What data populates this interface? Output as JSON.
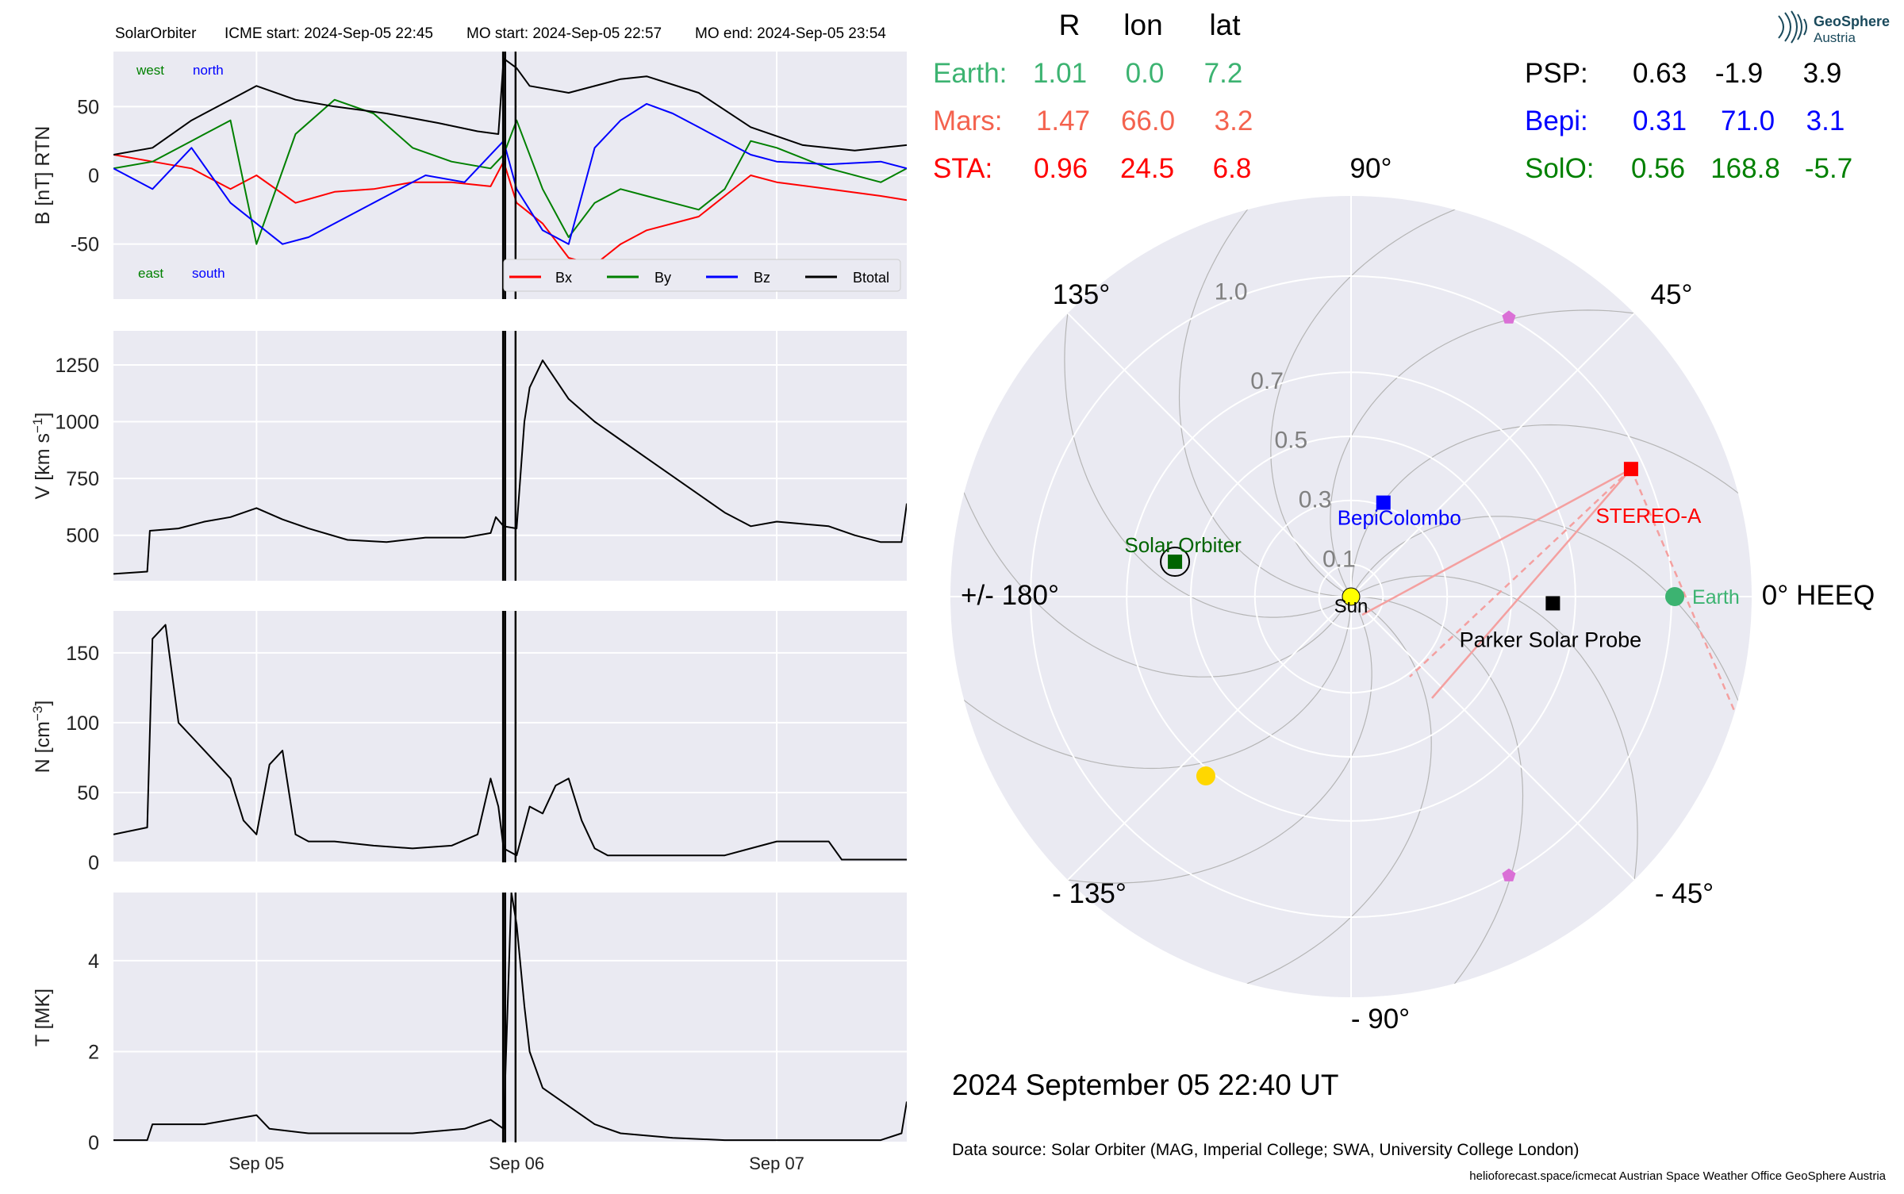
{
  "header": {
    "spacecraft": "SolarOrbiter",
    "icme_start": "ICME start: 2024-Sep-05 22:45",
    "mo_start": "MO start: 2024-Sep-05 22:57",
    "mo_end": "MO end: 2024-Sep-05 23:54"
  },
  "logo": {
    "line1": "GeoSphere",
    "line2": "Austria"
  },
  "colors": {
    "bx": "#ff0000",
    "by": "#008000",
    "bz": "#0000ff",
    "bt": "#000000",
    "earth": "#3cb371",
    "mars": "#f4624e",
    "sta": "#ff0000",
    "psp": "#000000",
    "bepi": "#0000ff",
    "solo": "#008000",
    "panel_bg": "#eaeaf2",
    "grid": "#ffffff"
  },
  "chart_data": [
    {
      "type": "line",
      "name": "magnetic-field",
      "ylabel": "B [nT] RTN",
      "ylim": [
        -90,
        90
      ],
      "yticks": [
        -50,
        0,
        50
      ],
      "time_range_days": [
        4.45,
        7.5
      ],
      "annotations": {
        "west": "west",
        "north": "north",
        "east": "east",
        "south": "south"
      },
      "legend": {
        "position": "bottom-right",
        "entries": [
          "Bx",
          "By",
          "Bz",
          "Btotal"
        ]
      },
      "series": [
        {
          "name": "Bx",
          "color": "#ff0000",
          "t": [
            4.45,
            4.6,
            4.75,
            4.9,
            5.0,
            5.15,
            5.3,
            5.45,
            5.6,
            5.75,
            5.9,
            5.95,
            6.0,
            6.1,
            6.2,
            6.3,
            6.4,
            6.5,
            6.7,
            6.8,
            6.9,
            7.0,
            7.2,
            7.4,
            7.5
          ],
          "v": [
            15,
            10,
            5,
            -10,
            0,
            -20,
            -12,
            -10,
            -5,
            -5,
            -8,
            10,
            -20,
            -35,
            -60,
            -65,
            -50,
            -40,
            -30,
            -15,
            0,
            -5,
            -10,
            -15,
            -18
          ]
        },
        {
          "name": "By",
          "color": "#008000",
          "t": [
            4.45,
            4.6,
            4.75,
            4.9,
            5.0,
            5.15,
            5.3,
            5.45,
            5.6,
            5.75,
            5.9,
            5.95,
            6.0,
            6.1,
            6.2,
            6.3,
            6.4,
            6.5,
            6.6,
            6.7,
            6.8,
            6.9,
            7.0,
            7.2,
            7.4,
            7.5
          ],
          "v": [
            5,
            10,
            25,
            40,
            -50,
            30,
            55,
            45,
            20,
            10,
            5,
            15,
            40,
            -10,
            -45,
            -20,
            -10,
            -15,
            -20,
            -25,
            -10,
            25,
            20,
            5,
            -5,
            5
          ]
        },
        {
          "name": "Bz",
          "color": "#0000ff",
          "t": [
            4.45,
            4.6,
            4.75,
            4.9,
            5.0,
            5.1,
            5.2,
            5.35,
            5.5,
            5.65,
            5.8,
            5.95,
            6.0,
            6.1,
            6.2,
            6.3,
            6.4,
            6.5,
            6.6,
            6.7,
            6.8,
            6.9,
            7.0,
            7.2,
            7.4,
            7.5
          ],
          "v": [
            5,
            -10,
            20,
            -20,
            -35,
            -50,
            -45,
            -30,
            -15,
            0,
            -5,
            25,
            -10,
            -40,
            -50,
            20,
            40,
            52,
            45,
            35,
            25,
            15,
            10,
            8,
            10,
            5
          ]
        },
        {
          "name": "Btotal",
          "color": "#000000",
          "t": [
            4.45,
            4.6,
            4.75,
            4.9,
            5.0,
            5.15,
            5.3,
            5.5,
            5.7,
            5.85,
            5.93,
            5.95,
            6.0,
            6.05,
            6.2,
            6.4,
            6.5,
            6.7,
            6.9,
            7.1,
            7.3,
            7.5
          ],
          "v": [
            15,
            20,
            40,
            55,
            65,
            55,
            50,
            45,
            38,
            32,
            30,
            85,
            78,
            65,
            60,
            70,
            72,
            60,
            35,
            22,
            18,
            22
          ]
        }
      ]
    },
    {
      "type": "line",
      "name": "speed",
      "ylabel": "V [km s",
      "ylabel_sup": "−1",
      "ylabel_end": "]",
      "ylim": [
        300,
        1400
      ],
      "yticks": [
        500,
        750,
        1000,
        1250
      ],
      "series": [
        {
          "name": "V",
          "color": "#000000",
          "t": [
            4.45,
            4.58,
            4.59,
            4.7,
            4.8,
            4.9,
            5.0,
            5.1,
            5.2,
            5.35,
            5.5,
            5.65,
            5.8,
            5.9,
            5.92,
            5.95,
            6.0,
            6.03,
            6.05,
            6.1,
            6.2,
            6.3,
            6.4,
            6.5,
            6.6,
            6.7,
            6.8,
            6.9,
            7.0,
            7.1,
            7.2,
            7.3,
            7.4,
            7.48,
            7.5
          ],
          "v": [
            330,
            340,
            520,
            530,
            560,
            580,
            620,
            570,
            530,
            480,
            470,
            490,
            490,
            510,
            580,
            540,
            530,
            1000,
            1150,
            1270,
            1100,
            1000,
            920,
            840,
            760,
            680,
            600,
            540,
            560,
            550,
            540,
            500,
            470,
            470,
            640
          ]
        }
      ]
    },
    {
      "type": "line",
      "name": "density",
      "ylabel": "N [cm",
      "ylabel_sup": "−3",
      "ylabel_end": "]",
      "ylim": [
        0,
        180
      ],
      "yticks": [
        0,
        50,
        100,
        150
      ],
      "series": [
        {
          "name": "N",
          "color": "#000000",
          "t": [
            4.45,
            4.58,
            4.6,
            4.65,
            4.7,
            4.75,
            4.8,
            4.9,
            4.95,
            5.0,
            5.05,
            5.1,
            5.15,
            5.2,
            5.3,
            5.45,
            5.6,
            5.75,
            5.85,
            5.9,
            5.93,
            5.95,
            6.0,
            6.05,
            6.1,
            6.15,
            6.2,
            6.25,
            6.3,
            6.35,
            6.5,
            6.7,
            6.8,
            6.9,
            7.0,
            7.2,
            7.25,
            7.5
          ],
          "v": [
            20,
            25,
            160,
            170,
            100,
            90,
            80,
            60,
            30,
            20,
            70,
            80,
            20,
            15,
            15,
            12,
            10,
            12,
            20,
            60,
            40,
            10,
            5,
            40,
            35,
            55,
            60,
            30,
            10,
            5,
            5,
            5,
            5,
            10,
            15,
            15,
            2,
            2
          ]
        }
      ]
    },
    {
      "type": "line",
      "name": "temperature",
      "ylabel": "T [MK]",
      "ylim": [
        0,
        5.5
      ],
      "yticks": [
        0,
        2,
        4
      ],
      "xticks": [
        "Sep 05",
        "Sep 06",
        "Sep 07"
      ],
      "xtick_days": [
        5,
        6,
        7
      ],
      "series": [
        {
          "name": "T",
          "color": "#000000",
          "t": [
            4.45,
            4.58,
            4.6,
            4.8,
            4.9,
            5.0,
            5.05,
            5.2,
            5.4,
            5.6,
            5.8,
            5.9,
            5.95,
            5.98,
            6.0,
            6.03,
            6.05,
            6.1,
            6.2,
            6.3,
            6.4,
            6.6,
            6.8,
            7.0,
            7.2,
            7.4,
            7.48,
            7.5
          ],
          "v": [
            0.05,
            0.05,
            0.4,
            0.4,
            0.5,
            0.6,
            0.3,
            0.2,
            0.2,
            0.2,
            0.3,
            0.5,
            0.3,
            5.5,
            4.8,
            3.0,
            2.0,
            1.2,
            0.8,
            0.4,
            0.2,
            0.1,
            0.05,
            0.05,
            0.05,
            0.05,
            0.2,
            0.9
          ]
        }
      ]
    }
  ],
  "event_lines": {
    "days": [
      5.948,
      5.956,
      5.996
    ]
  },
  "positions_table": {
    "headers": [
      "R",
      "lon",
      "lat"
    ],
    "left": [
      {
        "label": "Earth:",
        "r": "1.01",
        "lon": "0.0",
        "lat": "7.2",
        "color": "#3cb371"
      },
      {
        "label": "Mars:",
        "r": "1.47",
        "lon": "66.0",
        "lat": "3.2",
        "color": "#f4624e"
      },
      {
        "label": "STA:",
        "r": "0.96",
        "lon": "24.5",
        "lat": "6.8",
        "color": "#ff0000"
      }
    ],
    "right": [
      {
        "label": "PSP:",
        "r": "0.63",
        "lon": "-1.9",
        "lat": "3.9",
        "color": "#000000"
      },
      {
        "label": "Bepi:",
        "r": "0.31",
        "lon": "71.0",
        "lat": "3.1",
        "color": "#0000ff"
      },
      {
        "label": "SolO:",
        "r": "0.56",
        "lon": "168.8",
        "lat": "-5.7",
        "color": "#008000"
      }
    ]
  },
  "polar": {
    "angle_labels": {
      "a0": "0° HEEQ",
      "a45": "45°",
      "a90": "90°",
      "a135": "135°",
      "a180": "+/- 180°",
      "am135": "- 135°",
      "am90": "- 90°",
      "am45": "- 45°"
    },
    "radial_labels": [
      "0.1",
      "0.3",
      "0.5",
      "0.7",
      "1.0"
    ],
    "radial_values": [
      0.1,
      0.3,
      0.5,
      0.7,
      1.0
    ],
    "bodies": [
      {
        "name": "Sun",
        "label": "Sun",
        "r": 0.0,
        "lon": 0,
        "color": "#ffff00",
        "marker": "circle"
      },
      {
        "name": "Earth",
        "label": "Earth",
        "r": 1.01,
        "lon": 0.0,
        "color": "#3cb371",
        "marker": "circle"
      },
      {
        "name": "STEREO-A",
        "label": "STEREO-A",
        "r": 0.96,
        "lon": 24.5,
        "color": "#ff0000",
        "marker": "square"
      },
      {
        "name": "Parker Solar Probe",
        "label": "Parker Solar Probe",
        "r": 0.63,
        "lon": -1.9,
        "color": "#000000",
        "marker": "square"
      },
      {
        "name": "BepiColombo",
        "label": "BepiColombo",
        "r": 0.31,
        "lon": 71.0,
        "color": "#0000ff",
        "marker": "square"
      },
      {
        "name": "Solar Orbiter",
        "label": "Solar Orbiter",
        "r": 0.56,
        "lon": 168.8,
        "color": "#006400",
        "marker": "square"
      },
      {
        "name": "Mars",
        "label": "",
        "r": 1.47,
        "lon": 66.0,
        "color": "#f4624e",
        "marker": "none"
      },
      {
        "name": "Venus",
        "label": "",
        "r": 0.72,
        "lon": -129.0,
        "color": "#ffd700",
        "marker": "circle"
      },
      {
        "name": "pentagon-upper",
        "label": "",
        "r": 1.0,
        "lon": 60.5,
        "color": "#da70d6",
        "marker": "pentagon"
      },
      {
        "name": "pentagon-lower",
        "label": "",
        "r": 1.0,
        "lon": -60.5,
        "color": "#da70d6",
        "marker": "pentagon"
      }
    ]
  },
  "timestamp": "2024 September 05  22:40 UT",
  "data_source": "Data source: Solar Orbiter (MAG, Imperial College; SWA, University College London)",
  "footer": "helioforecast.space/icmecat   Austrian Space Weather Office   GeoSphere Austria"
}
